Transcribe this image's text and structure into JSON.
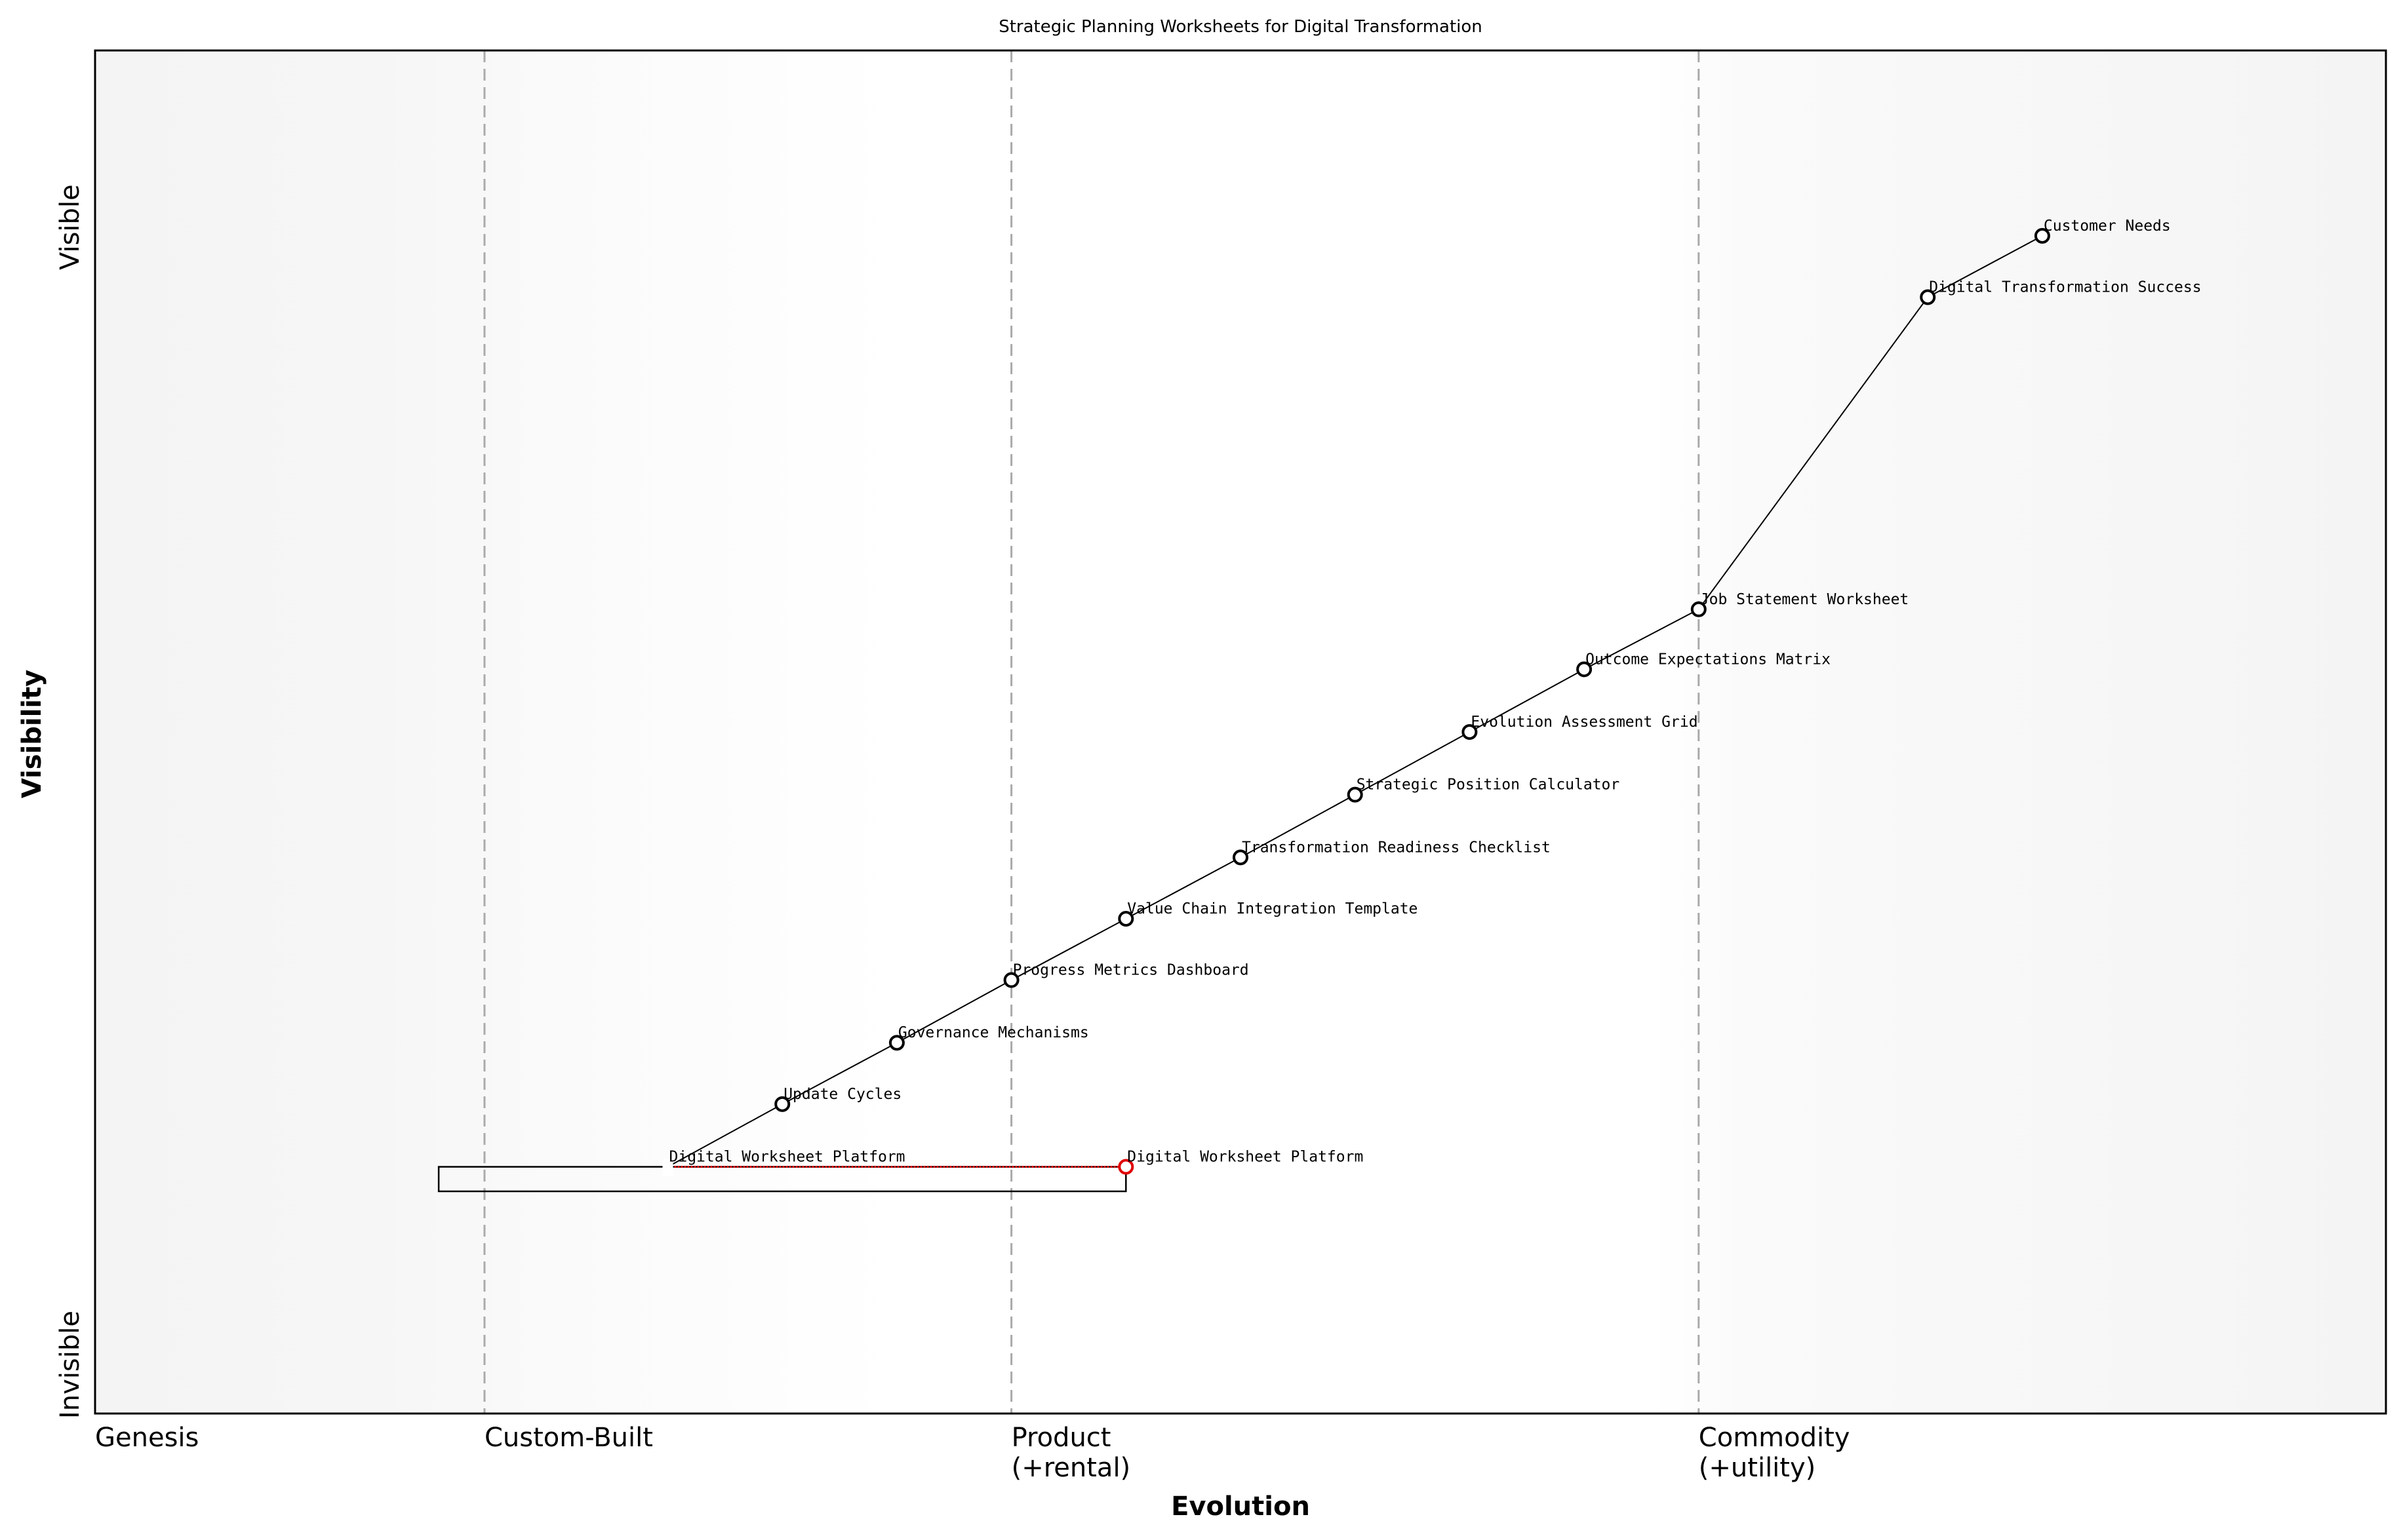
{
  "title": "Strategic Planning Worksheets for Digital Transformation",
  "xlabel": "Evolution",
  "ylabel": "Visibility",
  "y_top_label": "Visible",
  "y_bottom_label": "Invisible",
  "stages": [
    {
      "label": "Genesis",
      "x": 0.0
    },
    {
      "label": "Custom-Built",
      "x": 0.17
    },
    {
      "label": "Product\n(+rental)",
      "x": 0.4
    },
    {
      "label": "Commodity\n(+utility)",
      "x": 0.7
    }
  ],
  "components": [
    {
      "name": "Customer Needs",
      "evolution": 0.85,
      "visibility": 0.864
    },
    {
      "name": "Digital Transformation Success",
      "evolution": 0.8,
      "visibility": 0.819
    },
    {
      "name": "Job Statement Worksheet",
      "evolution": 0.7,
      "visibility": 0.59
    },
    {
      "name": "Outcome Expectations Matrix",
      "evolution": 0.65,
      "visibility": 0.546
    },
    {
      "name": "Evolution Assessment Grid",
      "evolution": 0.6,
      "visibility": 0.5
    },
    {
      "name": "Strategic Position Calculator",
      "evolution": 0.55,
      "visibility": 0.454
    },
    {
      "name": "Transformation Readiness Checklist",
      "evolution": 0.5,
      "visibility": 0.408
    },
    {
      "name": "Value Chain Integration Template",
      "evolution": 0.45,
      "visibility": 0.363
    },
    {
      "name": "Progress Metrics Dashboard",
      "evolution": 0.4,
      "visibility": 0.318
    },
    {
      "name": "Governance Mechanisms",
      "evolution": 0.35,
      "visibility": 0.272
    },
    {
      "name": "Update Cycles",
      "evolution": 0.3,
      "visibility": 0.227
    },
    {
      "name": "Digital Worksheet Platform",
      "evolution": 0.25,
      "visibility": 0.181,
      "hidden_marker": true
    }
  ],
  "links": [
    [
      0,
      1
    ],
    [
      1,
      2
    ],
    [
      2,
      3
    ],
    [
      3,
      4
    ],
    [
      4,
      5
    ],
    [
      5,
      6
    ],
    [
      6,
      7
    ],
    [
      7,
      8
    ],
    [
      8,
      9
    ],
    [
      9,
      10
    ],
    [
      10,
      11
    ]
  ],
  "evolved": [
    {
      "name": "Digital Worksheet Platform",
      "from_evolution": 0.25,
      "evolution": 0.45,
      "visibility": 0.181,
      "color": "#e00000"
    }
  ],
  "inertia_box": {
    "evolution_from": 0.15,
    "evolution_to": 0.45,
    "visibility_top": 0.181,
    "visibility_bottom": 0.163
  },
  "colors": {
    "grid": "#aaaaaa",
    "evolved": "#e00000",
    "edge_bg": "#f4f4f4"
  }
}
